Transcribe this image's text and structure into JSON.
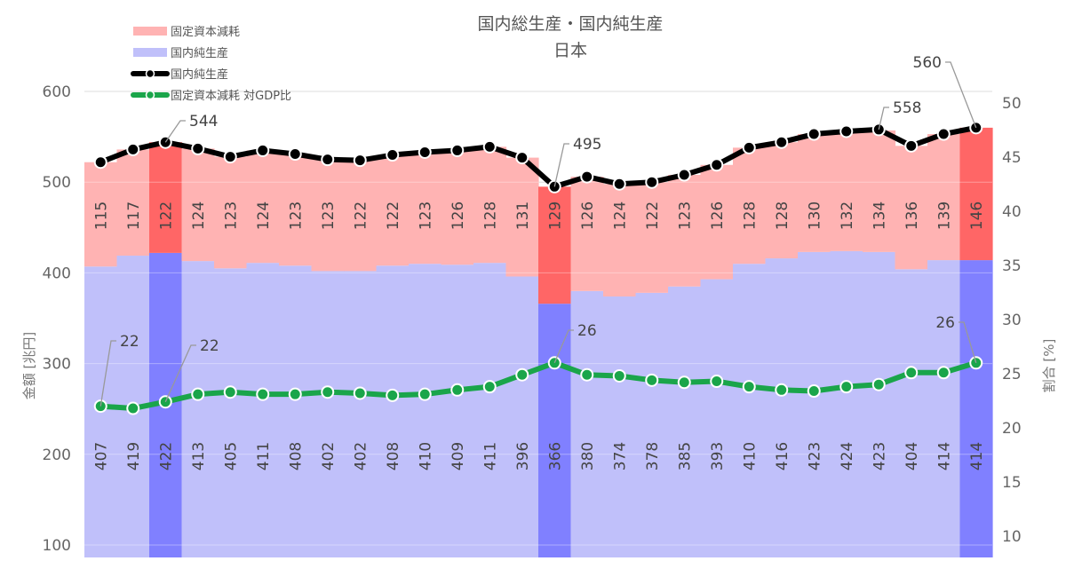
{
  "chart_data": {
    "type": "bar",
    "title": "国内総生産・国内純生産",
    "subtitle": "日本",
    "ylabel": "金額 [兆円]",
    "y2label": "割合 [%]",
    "ylim": [
      90,
      620
    ],
    "y2lim": [
      8.8,
      52.4
    ],
    "yticks": [
      100,
      200,
      300,
      400,
      500,
      600
    ],
    "y2ticks": [
      10,
      15,
      20,
      25,
      30,
      35,
      40,
      45,
      50
    ],
    "grid": true,
    "legend_position": "top-left",
    "legend": [
      {
        "label": "固定資本減耗",
        "kind": "area",
        "color": "#ffb3b3"
      },
      {
        "label": "国内純生産",
        "kind": "area",
        "color": "#c0c0fa"
      },
      {
        "label": "国内純生産",
        "kind": "line",
        "color": "#000000"
      },
      {
        "label": "固定資本減耗 対GDP比",
        "kind": "line",
        "color": "#1aa54a"
      }
    ],
    "colors": {
      "depreciation": "#ffb3b3",
      "depreciation_highlight": "#ff6666",
      "net": "#c0c0fa",
      "net_highlight": "#8080ff",
      "gdp_line": "#000000",
      "ratio_line": "#1aa54a",
      "grid": "#cccccc"
    },
    "highlight_indices": [
      2,
      14,
      27
    ],
    "series": [
      {
        "name": "国内純生産",
        "values": [
          407,
          419,
          422,
          413,
          405,
          411,
          408,
          402,
          402,
          408,
          410,
          409,
          411,
          396,
          366,
          380,
          374,
          378,
          385,
          393,
          410,
          416,
          423,
          424,
          423,
          404,
          414,
          414
        ]
      },
      {
        "name": "固定資本減耗",
        "values": [
          115,
          117,
          122,
          124,
          123,
          124,
          123,
          123,
          122,
          122,
          123,
          126,
          128,
          131,
          129,
          126,
          124,
          122,
          123,
          126,
          128,
          128,
          130,
          132,
          134,
          136,
          139,
          146
        ]
      },
      {
        "name": "国内総生産",
        "values": [
          522,
          536,
          544,
          537,
          528,
          535,
          531,
          525,
          524,
          530,
          533,
          535,
          539,
          527,
          495,
          506,
          498,
          500,
          508,
          519,
          538,
          544,
          553,
          556,
          558,
          540,
          553,
          560
        ]
      },
      {
        "name": "固定資本減耗 対GDP比",
        "values": [
          22.0,
          21.8,
          22.4,
          23.1,
          23.3,
          23.1,
          23.1,
          23.3,
          23.2,
          23.0,
          23.1,
          23.5,
          23.8,
          24.9,
          26.0,
          24.9,
          24.8,
          24.4,
          24.2,
          24.3,
          23.8,
          23.5,
          23.4,
          23.8,
          24.0,
          25.1,
          25.1,
          26.0
        ]
      }
    ],
    "callouts": [
      {
        "text": "544"
      },
      {
        "text": "495"
      },
      {
        "text": "558"
      },
      {
        "text": "560"
      },
      {
        "text": "22"
      },
      {
        "text": "22"
      },
      {
        "text": "26"
      },
      {
        "text": "26"
      }
    ]
  }
}
